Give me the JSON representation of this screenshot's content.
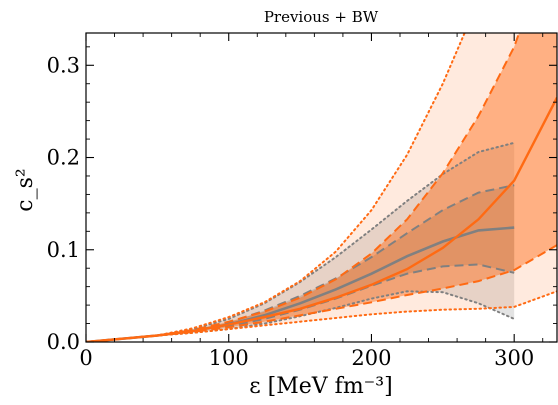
{
  "chart_data": {
    "type": "line",
    "title": "Previous + BW",
    "xlabel": "ε [MeV fm⁻³]",
    "ylabel": "c_s²",
    "xlim": [
      0,
      330
    ],
    "ylim": [
      0,
      0.335
    ],
    "x_ticks": [
      0,
      100,
      200,
      300
    ],
    "x_tick_labels": [
      "0",
      "100",
      "200",
      "300"
    ],
    "y_ticks": [
      0.0,
      0.1,
      0.2,
      0.3
    ],
    "y_tick_labels": [
      "0.0",
      "0.1",
      "0.2",
      "0.3"
    ],
    "grid": false,
    "series": [
      {
        "color": "#808080",
        "x": [
          0,
          50,
          75,
          100,
          125,
          150,
          175,
          200,
          225,
          250,
          275,
          300
        ],
        "median": [
          0.0,
          0.007,
          0.012,
          0.019,
          0.029,
          0.042,
          0.057,
          0.074,
          0.093,
          0.109,
          0.121,
          0.124
        ],
        "band_inner": {
          "lower": [
            0.0,
            0.007,
            0.011,
            0.017,
            0.025,
            0.035,
            0.047,
            0.061,
            0.074,
            0.082,
            0.084,
            0.075
          ],
          "upper": [
            0.0,
            0.007,
            0.013,
            0.021,
            0.034,
            0.05,
            0.069,
            0.092,
            0.118,
            0.143,
            0.162,
            0.17
          ]
        },
        "band_outer": {
          "lower": [
            0.0,
            0.007,
            0.01,
            0.014,
            0.02,
            0.028,
            0.037,
            0.047,
            0.055,
            0.054,
            0.042,
            0.025
          ],
          "upper": [
            0.0,
            0.007,
            0.014,
            0.025,
            0.042,
            0.065,
            0.092,
            0.122,
            0.153,
            0.182,
            0.206,
            0.216
          ]
        }
      },
      {
        "color": "#ff6a13",
        "x": [
          0,
          50,
          75,
          100,
          125,
          150,
          175,
          200,
          225,
          250,
          275,
          300,
          330
        ],
        "median": [
          0.0,
          0.007,
          0.012,
          0.019,
          0.027,
          0.036,
          0.048,
          0.062,
          0.079,
          0.102,
          0.133,
          0.175,
          0.265
        ],
        "band_inner": {
          "lower": [
            0.0,
            0.007,
            0.011,
            0.016,
            0.022,
            0.029,
            0.036,
            0.043,
            0.051,
            0.058,
            0.066,
            0.078,
            0.105
          ],
          "upper": [
            0.0,
            0.007,
            0.013,
            0.022,
            0.033,
            0.048,
            0.068,
            0.096,
            0.133,
            0.183,
            0.245,
            0.32,
            0.45
          ]
        },
        "band_outer": {
          "lower": [
            0.0,
            0.007,
            0.01,
            0.014,
            0.018,
            0.022,
            0.026,
            0.03,
            0.033,
            0.035,
            0.036,
            0.038,
            0.055
          ],
          "upper": [
            0.0,
            0.007,
            0.015,
            0.027,
            0.043,
            0.066,
            0.098,
            0.143,
            0.203,
            0.28,
            0.37,
            0.47,
            0.6
          ]
        }
      }
    ]
  }
}
